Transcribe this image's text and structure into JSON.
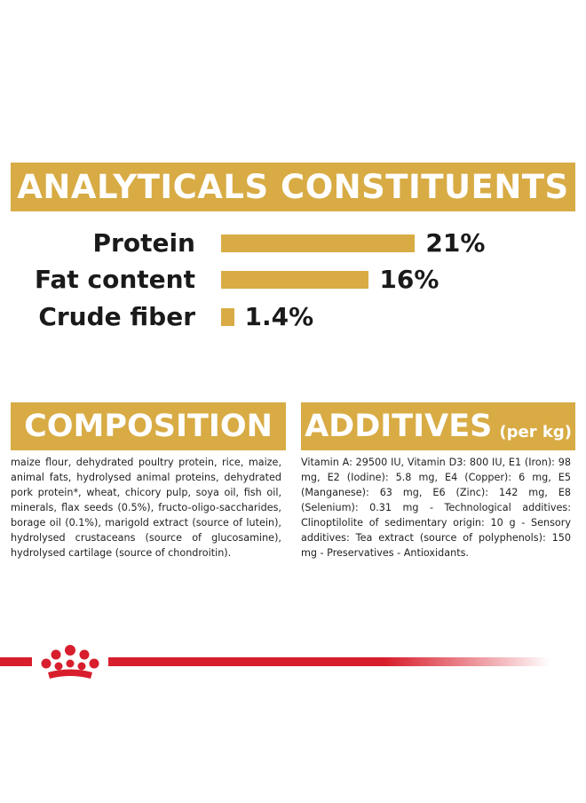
{
  "analytics": {
    "title": "ANALYTICALS CONSTITUENTS",
    "rows": [
      {
        "label": "Protein",
        "value": "21%",
        "percent": 21
      },
      {
        "label": "Fat content",
        "value": "16%",
        "percent": 16
      },
      {
        "label": "Crude fiber",
        "value": "1.4%",
        "percent": 1.4
      }
    ]
  },
  "composition": {
    "title": "COMPOSITION",
    "text": "maize flour, dehydrated poultry protein, rice, maize, animal fats, hydrolysed animal proteins, dehydrated pork protein*, wheat, chicory pulp, soya oil, fish oil, minerals, flax seeds (0.5%), fructo-oligo-saccharides, borage oil (0.1%), marigold extract (source of lutein), hydrolysed crustaceans (source of glucosamine), hydrolysed cartilage (source of chondroitin)."
  },
  "additives": {
    "title": "ADDITIVES",
    "title_suffix": "(per kg)",
    "text": "Vitamin A: 29500 IU, Vitamin D3: 800 IU, E1 (Iron): 98 mg, E2 (Iodine): 5.8 mg, E4 (Copper): 6 mg, E5 (Manganese): 63 mg, E6 (Zinc): 142 mg, E8 (Selenium): 0.31 mg - Technological additives: Clinoptilolite of sedimentary origin: 10 g - Sensory additives: Tea extract (source of polyphenols): 150 mg - Preservatives - Antioxidants."
  },
  "brand": {
    "logo_icon": "crown-icon",
    "accent_color": "#d8ab44",
    "stripe_color": "#d81e2c"
  }
}
